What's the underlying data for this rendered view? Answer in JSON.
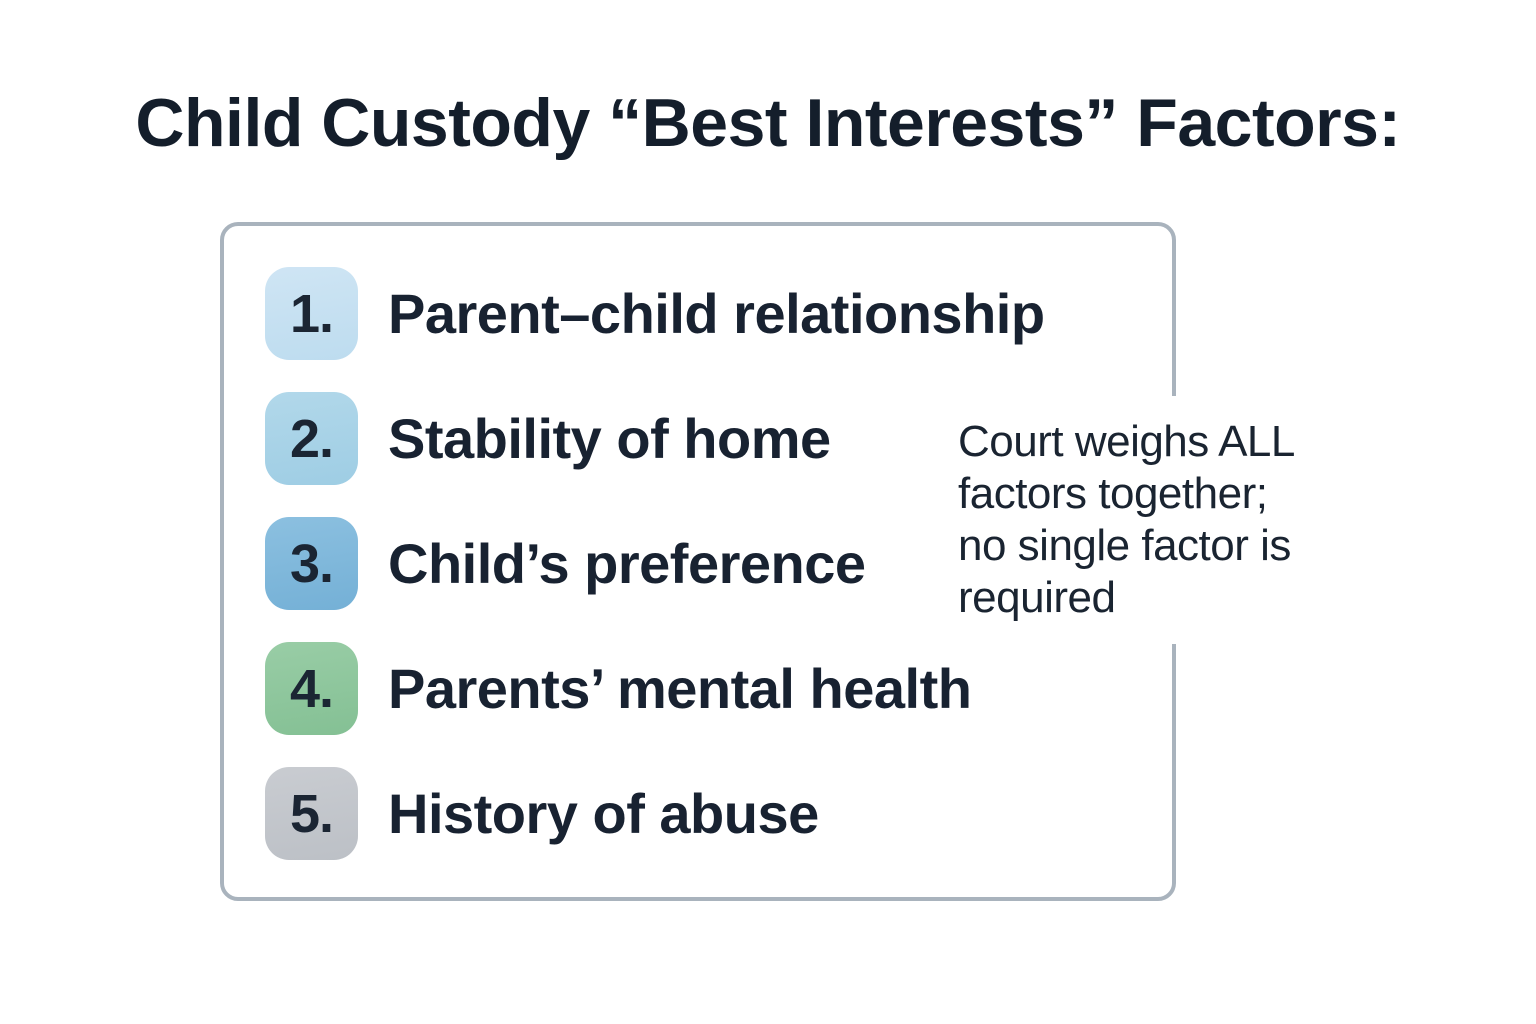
{
  "title": "Child Custody “Best Interests” Factors:",
  "items": [
    {
      "number": "1.",
      "label": "Parent–child relationship",
      "badge_top": "#cfe5f4",
      "badge_bottom": "#bddcef"
    },
    {
      "number": "2.",
      "label": "Stability of home",
      "badge_top": "#b2d8ea",
      "badge_bottom": "#9ecde4"
    },
    {
      "number": "3.",
      "label": "Child’s preference",
      "badge_top": "#8cc0e0",
      "badge_bottom": "#74b0d6"
    },
    {
      "number": "4.",
      "label": "Parents’ mental health",
      "badge_top": "#99cda6",
      "badge_bottom": "#84c094"
    },
    {
      "number": "5.",
      "label": "History of abuse",
      "badge_top": "#c9ccd1",
      "badge_bottom": "#bcc0c6"
    }
  ],
  "note": {
    "lines": [
      "Court weighs ALL",
      "factors together;",
      "no single factor is",
      "required"
    ]
  },
  "colors": {
    "text": "#182231",
    "title_text": "#141e2b",
    "panel_border": "#a9b3bd",
    "background": "#ffffff"
  }
}
